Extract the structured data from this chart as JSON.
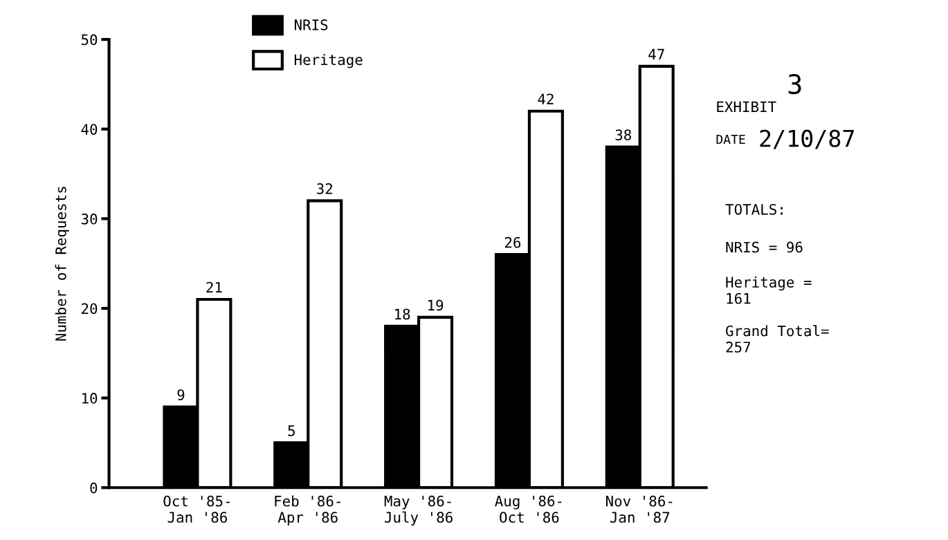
{
  "chart_data": {
    "type": "bar",
    "ylabel": "Number of Requests",
    "categories": [
      "Oct '85-\nJan '86",
      "Feb '86-\nApr '86",
      "May '86-\nJuly '86",
      "Aug '86-\nOct '86",
      "Nov '86-\nJan '87"
    ],
    "series": [
      {
        "name": "NRIS",
        "color": "#000000",
        "values": [
          9,
          5,
          18,
          26,
          38
        ]
      },
      {
        "name": "Heritage",
        "color": "#ffffff",
        "values": [
          21,
          32,
          19,
          42,
          47
        ]
      }
    ],
    "ylim": [
      0,
      50
    ],
    "yticks": [
      0,
      10,
      20,
      30,
      40,
      50
    ],
    "grid": false,
    "legend": "top left",
    "data_labels": true,
    "annotations": [
      "TOTALS:",
      "NRIS = 96",
      "Heritage =\n161",
      "Grand Total=\n257",
      "EXHIBIT",
      "3",
      "DATE",
      "2/10/87"
    ]
  }
}
